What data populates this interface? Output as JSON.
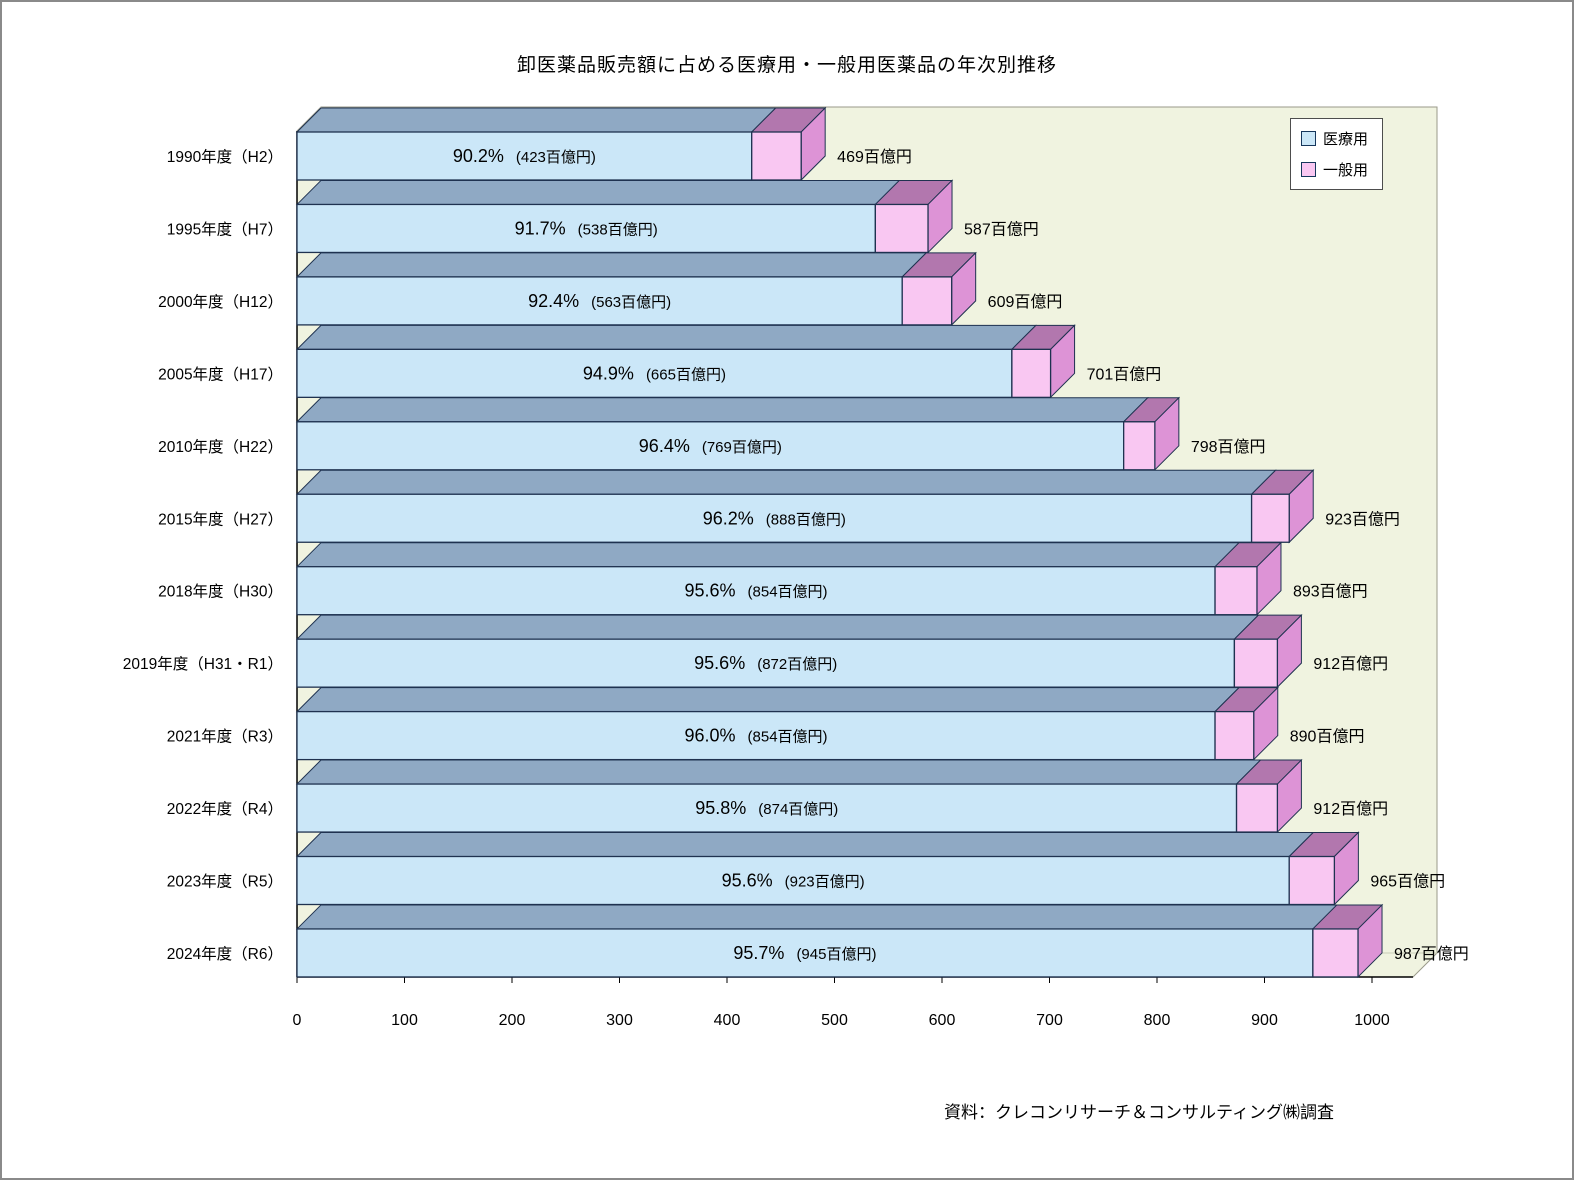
{
  "title": "卸医薬品販売額に占める医療用・一般用医薬品の年次別推移",
  "source": "資料：クレコンリサーチ＆コンサルティング㈱調査",
  "chart_data": {
    "type": "bar",
    "variant": "3d-horizontal-stacked",
    "unit": "百億円",
    "legend_position": "top-right",
    "series_names": [
      "医療用",
      "一般用"
    ],
    "x_axis": {
      "min": 0,
      "max": 1000,
      "tick_step": 100,
      "tick_labels": [
        "0",
        "100",
        "200",
        "300",
        "400",
        "500",
        "600",
        "700",
        "800",
        "900",
        "1000"
      ]
    },
    "colors": {
      "medical_front": "#cbe7f8",
      "medical_top": "#8fa9c4",
      "general_front": "#f9c7f2",
      "general_top": "#b277ae",
      "general_side": "#dd93d6",
      "plot_bg": "#f0f3e0",
      "border": "#1f3250"
    },
    "categories": [
      "1990年度（H2）",
      "1995年度（H7）",
      "2000年度（H12）",
      "2005年度（H17）",
      "2010年度（H22）",
      "2015年度（H27）",
      "2018年度（H30）",
      "2019年度（H31・R1）",
      "2021年度（R3）",
      "2022年度（R4）",
      "2023年度（R5）",
      "2024年度（R6）"
    ],
    "series": [
      {
        "name": "医療用",
        "values": [
          423,
          538,
          563,
          665,
          769,
          888,
          854,
          872,
          854,
          874,
          923,
          945
        ]
      },
      {
        "name": "一般用",
        "values": [
          46,
          49,
          46,
          36,
          29,
          35,
          39,
          40,
          36,
          38,
          42,
          42
        ]
      }
    ],
    "rows": [
      {
        "category": "1990年度（H2）",
        "pct_label": "90.2%",
        "amount_label": "(423百億円)",
        "medical": 423,
        "general": 46,
        "total": 469,
        "total_label": "469百億円"
      },
      {
        "category": "1995年度（H7）",
        "pct_label": "91.7%",
        "amount_label": "(538百億円)",
        "medical": 538,
        "general": 49,
        "total": 587,
        "total_label": "587百億円"
      },
      {
        "category": "2000年度（H12）",
        "pct_label": "92.4%",
        "amount_label": "(563百億円)",
        "medical": 563,
        "general": 46,
        "total": 609,
        "total_label": "609百億円"
      },
      {
        "category": "2005年度（H17）",
        "pct_label": "94.9%",
        "amount_label": "(665百億円)",
        "medical": 665,
        "general": 36,
        "total": 701,
        "total_label": "701百億円"
      },
      {
        "category": "2010年度（H22）",
        "pct_label": "96.4%",
        "amount_label": "(769百億円)",
        "medical": 769,
        "general": 29,
        "total": 798,
        "total_label": "798百億円"
      },
      {
        "category": "2015年度（H27）",
        "pct_label": "96.2%",
        "amount_label": "(888百億円)",
        "medical": 888,
        "general": 35,
        "total": 923,
        "total_label": "923百億円"
      },
      {
        "category": "2018年度（H30）",
        "pct_label": "95.6%",
        "amount_label": "(854百億円)",
        "medical": 854,
        "general": 39,
        "total": 893,
        "total_label": "893百億円"
      },
      {
        "category": "2019年度（H31・R1）",
        "pct_label": "95.6%",
        "amount_label": "(872百億円)",
        "medical": 872,
        "general": 40,
        "total": 912,
        "total_label": "912百億円"
      },
      {
        "category": "2021年度（R3）",
        "pct_label": "96.0%",
        "amount_label": "(854百億円)",
        "medical": 854,
        "general": 36,
        "total": 890,
        "total_label": "890百億円"
      },
      {
        "category": "2022年度（R4）",
        "pct_label": "95.8%",
        "amount_label": "(874百億円)",
        "medical": 874,
        "general": 38,
        "total": 912,
        "total_label": "912百億円"
      },
      {
        "category": "2023年度（R5）",
        "pct_label": "95.6%",
        "amount_label": "(923百億円)",
        "medical": 923,
        "general": 42,
        "total": 965,
        "total_label": "965百億円"
      },
      {
        "category": "2024年度（R6）",
        "pct_label": "95.7%",
        "amount_label": "(945百億円)",
        "medical": 945,
        "general": 42,
        "total": 987,
        "total_label": "987百億円"
      }
    ]
  }
}
